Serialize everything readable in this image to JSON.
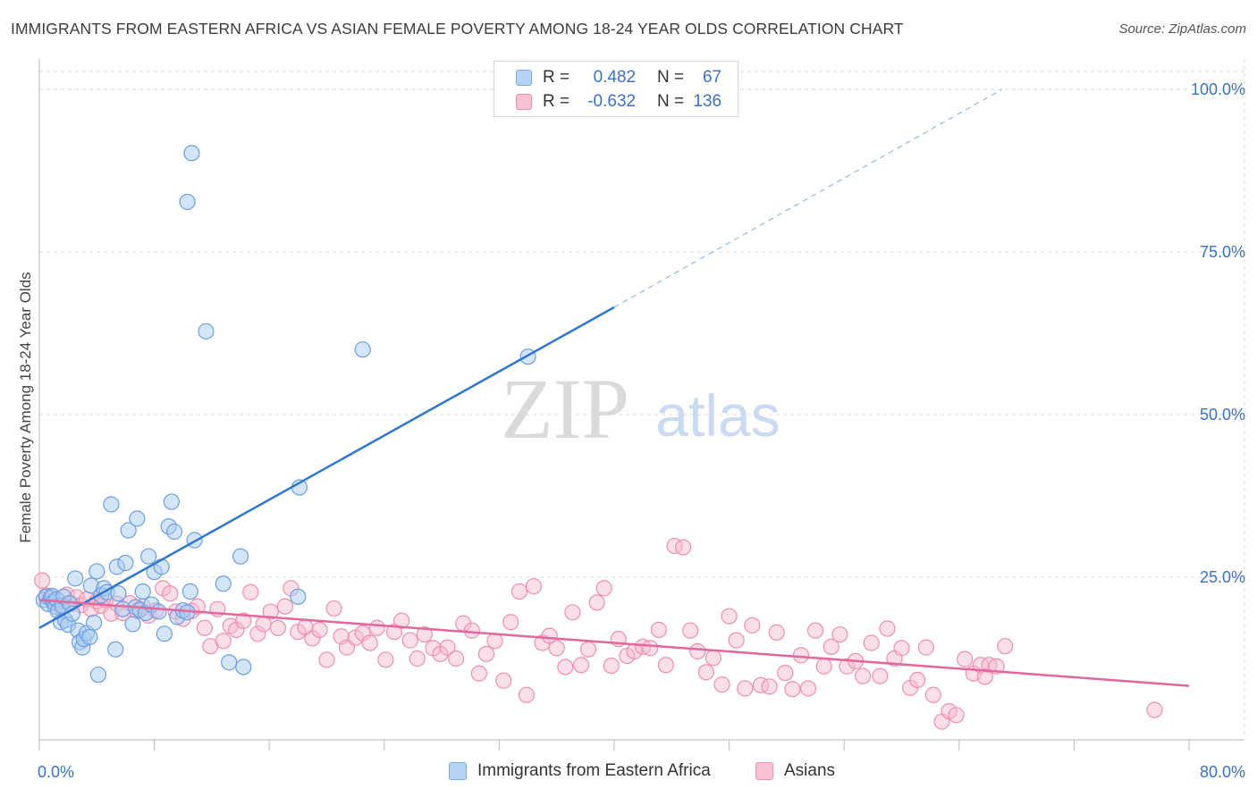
{
  "title": "IMMIGRANTS FROM EASTERN AFRICA VS ASIAN FEMALE POVERTY AMONG 18-24 YEAR OLDS CORRELATION CHART",
  "source": "Source: ZipAtlas.com",
  "watermark": {
    "zip": "ZIP",
    "atlas": "atlas"
  },
  "colors": {
    "blue_fill": "#a9cbf2",
    "blue_stroke": "#6b9fe0",
    "blue_line": "#2f76d2",
    "pink_fill": "#f7b8cc",
    "pink_stroke": "#ee8fad",
    "pink_line": "#e2679a",
    "axis_label": "#3a72c6",
    "grid": "#dddddd"
  },
  "legend_top": [
    {
      "r_label": "R =",
      "r_value": "0.482",
      "n_label": "N =",
      "n_value": "67"
    },
    {
      "r_label": "R =",
      "r_value": "-0.632",
      "n_label": "N =",
      "n_value": "136"
    }
  ],
  "legend_bottom": [
    "Immigrants from Eastern Africa",
    "Asians"
  ],
  "chart_data": {
    "type": "scatter",
    "ylabel": "Female Poverty Among 18-24 Year Olds",
    "xlim": [
      0,
      80
    ],
    "ylim": [
      0,
      100
    ],
    "x_tick_labels": [
      {
        "value": 0,
        "label": "0.0%"
      },
      {
        "value": 80,
        "label": "80.0%"
      }
    ],
    "y_tick_labels": [
      {
        "value": 25,
        "label": "25.0%"
      },
      {
        "value": 50,
        "label": "50.0%"
      },
      {
        "value": 75,
        "label": "75.0%"
      },
      {
        "value": 100,
        "label": "100.0%"
      }
    ],
    "grid": true,
    "legend_position": "top-center",
    "series": [
      {
        "name": "Immigrants from Eastern Africa",
        "color": "#a9cbf2",
        "trend": {
          "x0": 0,
          "y0": 17.2,
          "x1": 40,
          "y1": 66.5,
          "dashed_to_x": 67,
          "dashed_to_y": 100
        },
        "points": [
          [
            0.3,
            21.5
          ],
          [
            0.5,
            22.0
          ],
          [
            0.6,
            20.9
          ],
          [
            0.8,
            21.8
          ],
          [
            0.9,
            22.1
          ],
          [
            1.0,
            21.2
          ],
          [
            1.1,
            20.5
          ],
          [
            1.2,
            21.6
          ],
          [
            1.3,
            19.8
          ],
          [
            1.5,
            18.1
          ],
          [
            1.6,
            20.6
          ],
          [
            1.7,
            22.0
          ],
          [
            1.8,
            18.4
          ],
          [
            2.0,
            17.7
          ],
          [
            2.1,
            21.0
          ],
          [
            2.3,
            19.4
          ],
          [
            2.5,
            24.8
          ],
          [
            2.7,
            16.8
          ],
          [
            2.8,
            15.0
          ],
          [
            3.0,
            14.2
          ],
          [
            3.1,
            15.5
          ],
          [
            3.3,
            16.4
          ],
          [
            3.5,
            15.8
          ],
          [
            3.6,
            23.7
          ],
          [
            3.8,
            18.0
          ],
          [
            4.0,
            25.9
          ],
          [
            4.1,
            10.0
          ],
          [
            4.3,
            22.2
          ],
          [
            4.5,
            23.3
          ],
          [
            4.7,
            22.7
          ],
          [
            5.0,
            36.2
          ],
          [
            5.3,
            13.9
          ],
          [
            5.4,
            26.6
          ],
          [
            5.5,
            22.5
          ],
          [
            5.8,
            20.1
          ],
          [
            6.0,
            27.2
          ],
          [
            6.2,
            32.2
          ],
          [
            6.5,
            17.8
          ],
          [
            6.7,
            20.4
          ],
          [
            6.8,
            34.0
          ],
          [
            7.0,
            20.0
          ],
          [
            7.2,
            22.8
          ],
          [
            7.4,
            19.5
          ],
          [
            7.6,
            28.2
          ],
          [
            7.8,
            20.8
          ],
          [
            8.0,
            25.8
          ],
          [
            8.3,
            19.7
          ],
          [
            8.5,
            26.6
          ],
          [
            8.7,
            16.3
          ],
          [
            9.0,
            32.8
          ],
          [
            9.2,
            36.6
          ],
          [
            9.4,
            32.0
          ],
          [
            9.6,
            18.9
          ],
          [
            10.0,
            19.9
          ],
          [
            10.3,
            19.6
          ],
          [
            10.5,
            22.8
          ],
          [
            10.8,
            30.7
          ],
          [
            10.3,
            82.7
          ],
          [
            10.6,
            90.2
          ],
          [
            11.6,
            62.8
          ],
          [
            12.8,
            24.0
          ],
          [
            13.2,
            11.9
          ],
          [
            14.0,
            28.2
          ],
          [
            14.2,
            11.2
          ],
          [
            18.0,
            22.0
          ],
          [
            18.1,
            38.8
          ],
          [
            22.5,
            60.0
          ],
          [
            34.0,
            58.9
          ]
        ]
      },
      {
        "name": "Asians",
        "color": "#f7b8cc",
        "trend": {
          "x0": 0,
          "y0": 21.5,
          "x1": 80,
          "y1": 8.3
        },
        "points": [
          [
            0.2,
            24.5
          ],
          [
            0.5,
            22.2
          ],
          [
            0.8,
            21.8
          ],
          [
            1.1,
            21.0
          ],
          [
            1.5,
            20.5
          ],
          [
            1.9,
            22.3
          ],
          [
            2.2,
            20.9
          ],
          [
            2.6,
            21.9
          ],
          [
            2.9,
            20.7
          ],
          [
            3.3,
            21.6
          ],
          [
            3.6,
            20.1
          ],
          [
            4.0,
            21.3
          ],
          [
            4.3,
            20.6
          ],
          [
            4.6,
            21.5
          ],
          [
            5.0,
            19.4
          ],
          [
            5.4,
            20.9
          ],
          [
            5.8,
            19.5
          ],
          [
            6.3,
            21.0
          ],
          [
            6.8,
            19.8
          ],
          [
            7.2,
            20.5
          ],
          [
            7.6,
            19.1
          ],
          [
            8.1,
            19.9
          ],
          [
            8.6,
            23.3
          ],
          [
            9.1,
            22.5
          ],
          [
            9.5,
            19.7
          ],
          [
            10.0,
            18.6
          ],
          [
            10.6,
            19.8
          ],
          [
            11.0,
            20.5
          ],
          [
            11.5,
            17.2
          ],
          [
            11.9,
            14.4
          ],
          [
            12.4,
            20.1
          ],
          [
            12.8,
            15.2
          ],
          [
            13.3,
            17.5
          ],
          [
            13.7,
            16.9
          ],
          [
            14.2,
            18.3
          ],
          [
            14.7,
            22.7
          ],
          [
            15.2,
            16.3
          ],
          [
            15.6,
            17.8
          ],
          [
            16.1,
            19.7
          ],
          [
            16.6,
            17.2
          ],
          [
            17.1,
            20.5
          ],
          [
            17.5,
            23.3
          ],
          [
            18.0,
            16.6
          ],
          [
            18.5,
            17.3
          ],
          [
            19.0,
            15.6
          ],
          [
            19.5,
            16.9
          ],
          [
            20.0,
            12.3
          ],
          [
            20.5,
            20.2
          ],
          [
            21.0,
            15.9
          ],
          [
            21.4,
            14.2
          ],
          [
            22.0,
            15.7
          ],
          [
            22.5,
            16.4
          ],
          [
            23.0,
            14.9
          ],
          [
            23.5,
            17.2
          ],
          [
            24.1,
            12.3
          ],
          [
            24.7,
            16.6
          ],
          [
            25.2,
            18.3
          ],
          [
            25.8,
            15.3
          ],
          [
            26.3,
            12.5
          ],
          [
            26.8,
            16.2
          ],
          [
            27.4,
            14.1
          ],
          [
            27.9,
            13.2
          ],
          [
            28.4,
            14.2
          ],
          [
            29.0,
            12.5
          ],
          [
            29.5,
            17.9
          ],
          [
            30.1,
            16.8
          ],
          [
            30.6,
            10.2
          ],
          [
            31.1,
            13.2
          ],
          [
            31.7,
            15.2
          ],
          [
            32.3,
            9.1
          ],
          [
            32.8,
            18.1
          ],
          [
            33.4,
            22.8
          ],
          [
            33.9,
            6.9
          ],
          [
            34.4,
            23.6
          ],
          [
            35.0,
            14.9
          ],
          [
            35.5,
            16.0
          ],
          [
            36.0,
            14.1
          ],
          [
            36.6,
            11.2
          ],
          [
            37.1,
            19.6
          ],
          [
            37.7,
            11.5
          ],
          [
            38.2,
            13.9
          ],
          [
            38.8,
            21.1
          ],
          [
            39.3,
            23.3
          ],
          [
            39.8,
            11.4
          ],
          [
            40.3,
            15.5
          ],
          [
            40.9,
            12.9
          ],
          [
            41.4,
            13.6
          ],
          [
            42.0,
            14.3
          ],
          [
            42.5,
            14.1
          ],
          [
            43.1,
            16.9
          ],
          [
            43.6,
            11.5
          ],
          [
            44.2,
            29.8
          ],
          [
            44.8,
            29.6
          ],
          [
            45.3,
            16.8
          ],
          [
            45.8,
            13.6
          ],
          [
            46.4,
            10.4
          ],
          [
            46.9,
            12.6
          ],
          [
            47.5,
            8.5
          ],
          [
            48.0,
            19.0
          ],
          [
            48.5,
            15.3
          ],
          [
            49.1,
            7.9
          ],
          [
            49.6,
            17.6
          ],
          [
            50.2,
            8.4
          ],
          [
            50.8,
            8.2
          ],
          [
            51.3,
            16.5
          ],
          [
            51.9,
            10.3
          ],
          [
            52.4,
            7.8
          ],
          [
            53.0,
            13.0
          ],
          [
            53.5,
            7.9
          ],
          [
            54.0,
            16.8
          ],
          [
            54.6,
            11.3
          ],
          [
            55.1,
            14.3
          ],
          [
            55.7,
            16.2
          ],
          [
            56.2,
            11.3
          ],
          [
            56.8,
            12.1
          ],
          [
            57.3,
            9.8
          ],
          [
            57.9,
            14.9
          ],
          [
            58.5,
            9.8
          ],
          [
            59.0,
            17.1
          ],
          [
            59.5,
            12.5
          ],
          [
            60.0,
            14.1
          ],
          [
            60.6,
            8.0
          ],
          [
            61.1,
            9.2
          ],
          [
            61.7,
            14.2
          ],
          [
            62.2,
            6.9
          ],
          [
            62.8,
            2.8
          ],
          [
            63.3,
            4.4
          ],
          [
            63.8,
            3.8
          ],
          [
            64.4,
            12.4
          ],
          [
            65.0,
            10.2
          ],
          [
            65.5,
            11.5
          ],
          [
            66.1,
            11.5
          ],
          [
            66.6,
            11.3
          ],
          [
            67.2,
            14.4
          ],
          [
            77.6,
            4.6
          ],
          [
            65.8,
            9.7
          ]
        ]
      }
    ]
  }
}
